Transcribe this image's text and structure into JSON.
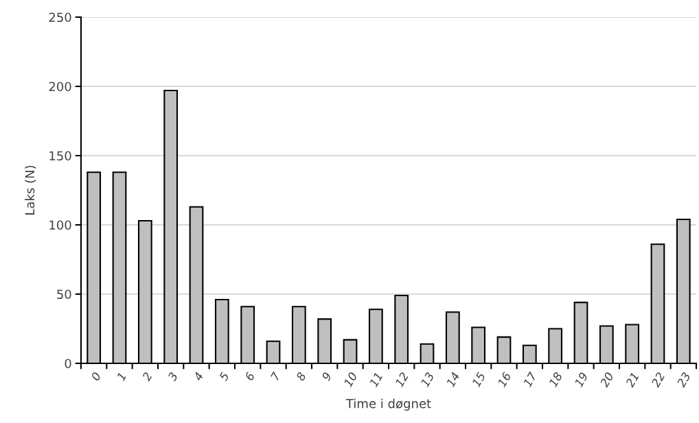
{
  "chart_data": {
    "type": "bar",
    "xlabel": "Time i døgnet",
    "ylabel": "Laks (N)",
    "categories": [
      "0",
      "1",
      "2",
      "3",
      "4",
      "5",
      "6",
      "7",
      "8",
      "9",
      "10",
      "11",
      "12",
      "13",
      "14",
      "15",
      "16",
      "17",
      "18",
      "19",
      "20",
      "21",
      "22",
      "23"
    ],
    "values": [
      138,
      138,
      103,
      197,
      113,
      46,
      41,
      16,
      41,
      32,
      17,
      39,
      49,
      14,
      37,
      26,
      19,
      13,
      25,
      44,
      27,
      28,
      86,
      104
    ],
    "color": "#bfbfbf",
    "ylim": [
      0,
      250
    ],
    "yticks": [
      0,
      50,
      100,
      150,
      200,
      250
    ],
    "grid": "y"
  }
}
